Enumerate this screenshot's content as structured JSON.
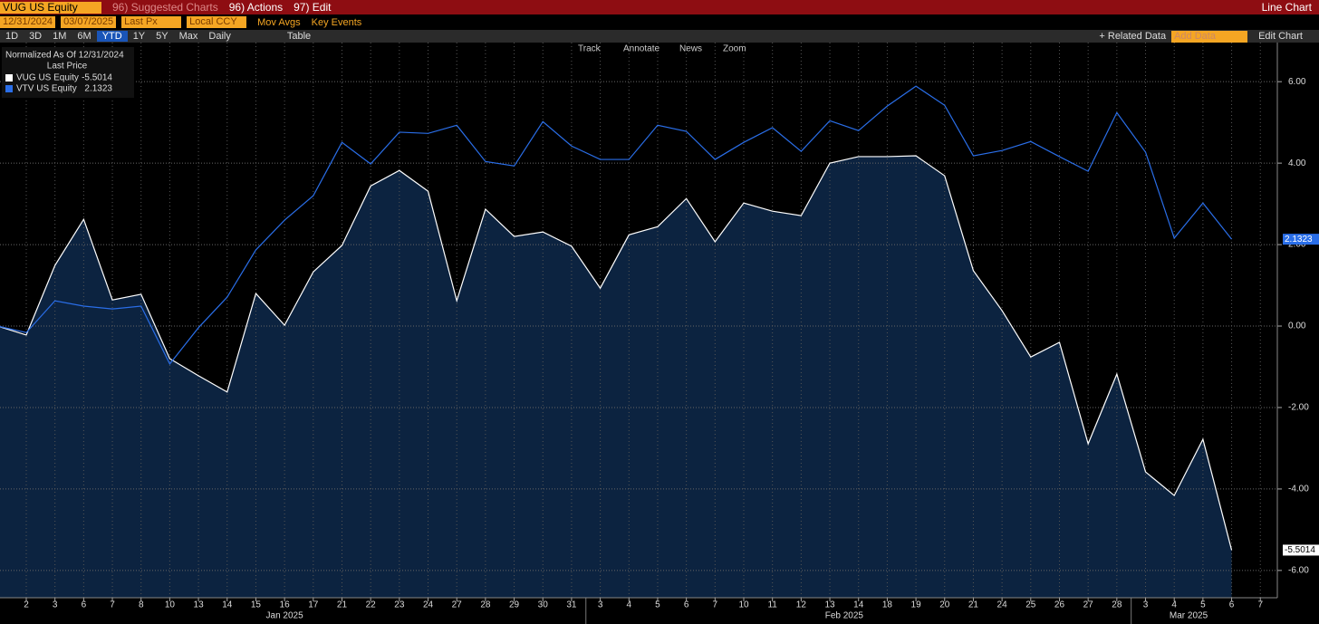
{
  "ui": {
    "top_bar": {
      "ticker": "VUG US Equity",
      "menus": [
        "96) Suggested Charts",
        "96) Actions",
        "97) Edit"
      ],
      "view": "Line Chart"
    },
    "settings_bar": {
      "start_date": "12/31/2024",
      "end_date": "03/07/2025",
      "field": "Last Px",
      "currency": "Local CCY",
      "toggles": [
        "Mov Avgs",
        "Key Events"
      ]
    },
    "period_bar": {
      "periods": [
        "1D",
        "3D",
        "1M",
        "6M",
        "YTD",
        "1Y",
        "5Y",
        "Max"
      ],
      "selected": "YTD",
      "frequency": "Daily",
      "table": "Table",
      "related": "+ Related Data",
      "add_data": "Add Data",
      "edit_chart": "Edit Chart"
    },
    "chart_tools": [
      "Track",
      "Annotate",
      "News",
      "Zoom"
    ],
    "legend_header": [
      "Normalized As Of 12/31/2024",
      "Last Price"
    ]
  },
  "chart_data": {
    "type": "line",
    "categories": [
      null,
      "2",
      "3",
      "6",
      "7",
      "8",
      "10",
      "13",
      "14",
      "15",
      "16",
      "17",
      "21",
      "22",
      "23",
      "24",
      "27",
      "28",
      "29",
      "30",
      "31",
      "3",
      "4",
      "5",
      "6",
      "7",
      "10",
      "11",
      "12",
      "13",
      "14",
      "18",
      "19",
      "20",
      "21",
      "24",
      "25",
      "26",
      "27",
      "28",
      "3",
      "4",
      "5",
      "6",
      "7"
    ],
    "x_group_labels": [
      "Jan 2025",
      "Feb 2025",
      "Mar 2025"
    ],
    "series": [
      {
        "name": "VUG US Equity",
        "color": "#ffffff",
        "area_color": "#0c2340",
        "last_value_label": "-5.5014",
        "values": [
          0,
          -0.22,
          1.49,
          2.62,
          0.64,
          0.78,
          -0.8,
          -1.22,
          -1.62,
          0.8,
          0.02,
          1.33,
          1.98,
          3.44,
          3.82,
          3.31,
          0.62,
          2.87,
          2.2,
          2.31,
          1.96,
          0.93,
          2.24,
          2.44,
          3.13,
          2.07,
          3.02,
          2.82,
          2.71,
          4.0,
          4.16,
          4.16,
          4.18,
          3.69,
          1.36,
          0.38,
          -0.76,
          -0.4,
          -2.89,
          -1.18,
          -3.58,
          -4.16,
          -2.78,
          -5.5014,
          null
        ]
      },
      {
        "name": "VTV US Equity",
        "color": "#2a6ee8",
        "last_value_label": "2.1323",
        "values": [
          0,
          -0.16,
          0.62,
          0.49,
          0.42,
          0.49,
          -0.93,
          -0.04,
          0.71,
          1.87,
          2.6,
          3.2,
          4.51,
          3.98,
          4.76,
          4.73,
          4.93,
          4.04,
          3.93,
          5.02,
          4.42,
          4.09,
          4.09,
          4.93,
          4.78,
          4.09,
          4.51,
          4.87,
          4.29,
          5.04,
          4.8,
          5.4,
          5.89,
          5.42,
          4.18,
          4.31,
          4.53,
          4.16,
          3.8,
          5.24,
          4.27,
          2.16,
          3.02,
          2.1323,
          null
        ]
      }
    ],
    "ylim": [
      -6.67,
      6.96
    ],
    "yticks": [
      {
        "value": -6,
        "label": "-6.00"
      },
      {
        "value": -4,
        "label": "-4.00"
      },
      {
        "value": -2,
        "label": "-2.00"
      },
      {
        "value": 0,
        "label": "0.00"
      },
      {
        "value": 2,
        "label": "2.00"
      },
      {
        "value": 4,
        "label": "4.00"
      },
      {
        "value": 6,
        "label": "6.00"
      }
    ],
    "grid": true
  }
}
